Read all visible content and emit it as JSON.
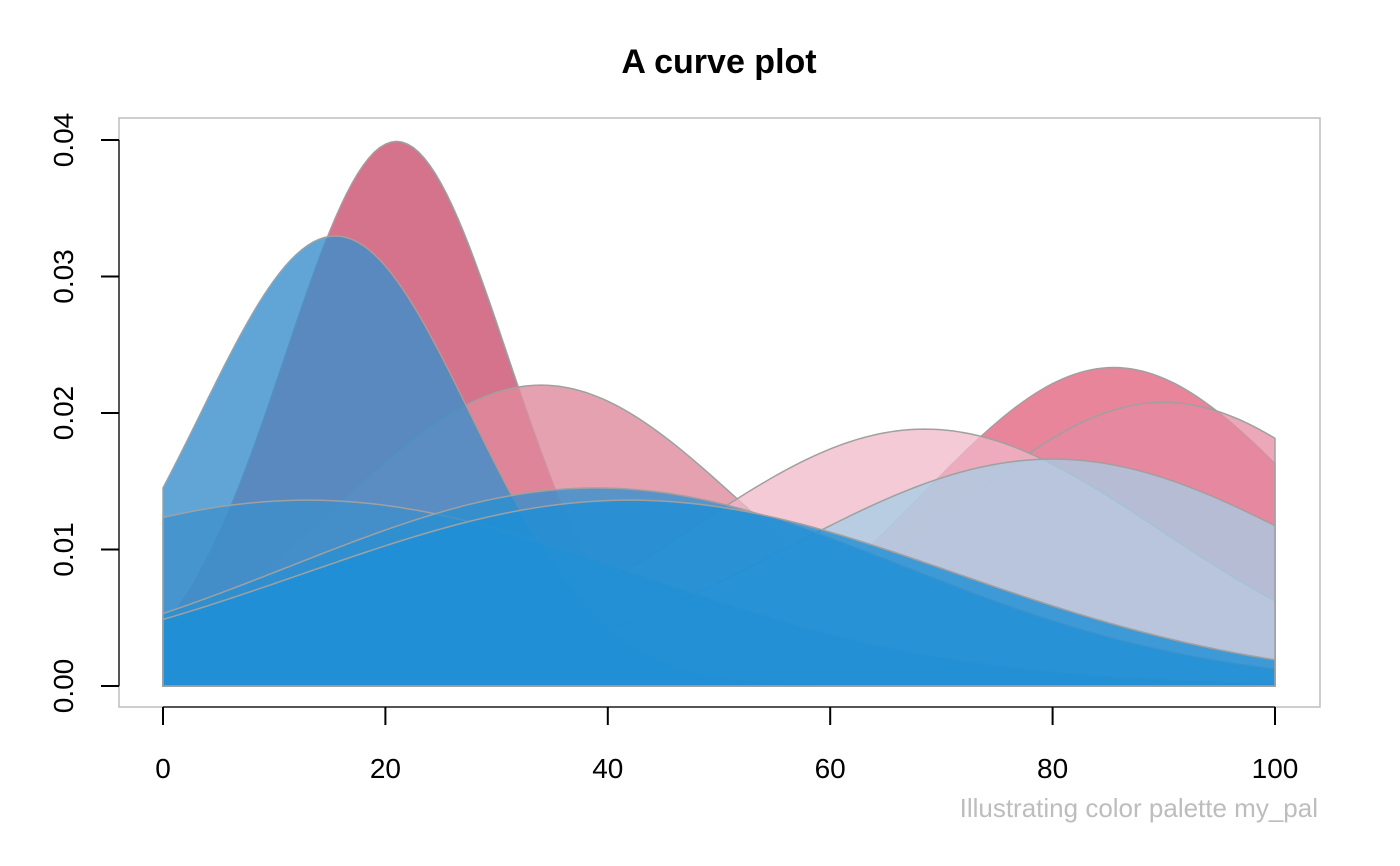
{
  "chart_data": {
    "type": "area",
    "title": "A curve plot",
    "caption": "Illustrating color palette my_pal",
    "xlim": [
      0,
      100
    ],
    "ylim": [
      0,
      0.04
    ],
    "x_ticks": [
      0,
      20,
      40,
      60,
      80,
      100
    ],
    "x_tick_labels": [
      "0",
      "20",
      "40",
      "60",
      "80",
      "100"
    ],
    "y_ticks": [
      0,
      0.01,
      0.02,
      0.03,
      0.04
    ],
    "y_tick_labels": [
      "0.00",
      "0.01",
      "0.02",
      "0.03",
      "0.04"
    ],
    "grid": false,
    "curve_shape": "normal density",
    "series": [
      {
        "mean": 85.5,
        "sd": 17.1,
        "color": "#e57890",
        "opacity": 0.9
      },
      {
        "mean": 21,
        "sd": 10,
        "color": "#c9506e",
        "opacity": 0.8
      },
      {
        "mean": 90,
        "sd": 19.2,
        "color": "#e58aa0",
        "opacity": 0.75
      },
      {
        "mean": 34,
        "sd": 18.1,
        "color": "#e08a9c",
        "opacity": 0.8
      },
      {
        "mean": 68.5,
        "sd": 21.2,
        "color": "#efb8c8",
        "opacity": 0.75
      },
      {
        "mean": 80,
        "sd": 24,
        "color": "#a5cde6",
        "opacity": 0.75
      },
      {
        "mean": 15.5,
        "sd": 12.1,
        "color": "#3a8fcc",
        "opacity": 0.8
      },
      {
        "mean": 13,
        "sd": 29.3,
        "color": "#3a8fcc",
        "opacity": 0.7
      },
      {
        "mean": 39,
        "sd": 27.5,
        "color": "#2a90d0",
        "opacity": 0.75
      },
      {
        "mean": 42,
        "sd": 29.3,
        "color": "#1e8fd6",
        "opacity": 0.8
      }
    ],
    "colors": {
      "stroke": "#a0a0a0",
      "box": "#bdbdbd",
      "axis": "#555555"
    }
  }
}
